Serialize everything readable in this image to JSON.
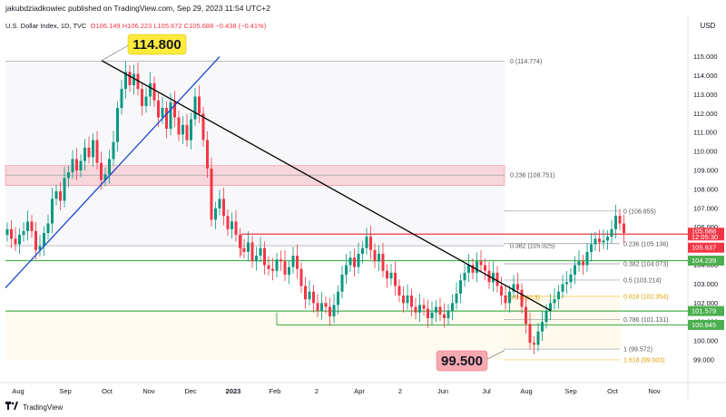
{
  "header": {
    "publisher": "jakubdziadkowiec published on TradingView.com, Sep 29, 2023 11:54 UTC+2",
    "symbol": "U.S. Dollar Index, 1D, TVC",
    "open": "O106.149",
    "high": "H106.223",
    "low": "L105.672",
    "close": "C105.688",
    "change": "−0.438 (−0.41%)",
    "currency": "USD"
  },
  "footer": {
    "brand": "TradingView"
  },
  "colors": {
    "up": "#089981",
    "down": "#f23645",
    "green_level": "#4caf50",
    "red_level": "#f23645",
    "trend_black": "#000000",
    "trend_blue": "#1848cc",
    "zone_pink": "#f7c5cc"
  },
  "chart_data": {
    "type": "candlestick",
    "yaxis": {
      "min": 98.5,
      "max": 116,
      "ticks": [
        99,
        100,
        101,
        102,
        103,
        104,
        105,
        106,
        107,
        108,
        109,
        110,
        111,
        112,
        113,
        114,
        115
      ]
    },
    "xaxis": {
      "labels": [
        "Aug",
        "Sep",
        "Oct",
        "Nov",
        "Dec",
        "2023",
        "Feb",
        "2",
        "Apr",
        "2",
        "Jun",
        "Jul",
        "Aug",
        "Sep",
        "Oct",
        "Nov"
      ]
    },
    "last_price": {
      "value": "105.688",
      "countdown": "12:05:30"
    },
    "price_tags": [
      {
        "value": "105.637",
        "color": "#f23645"
      },
      {
        "value": "104.239",
        "color": "#4caf50"
      },
      {
        "value": "101.579",
        "color": "#4caf50"
      },
      {
        "value": "100.845",
        "color": "#4caf50"
      }
    ],
    "fib_upper": [
      {
        "label": "0 (114.774)",
        "price": 114.774
      },
      {
        "label": "0.236 (108.751)",
        "price": 108.751
      },
      {
        "label": "0.382 (105.025)",
        "price": 105.025
      }
    ],
    "fib_lower": [
      {
        "label": "0 (106.855)",
        "price": 106.855
      },
      {
        "label": "0.236 (105.136)",
        "price": 105.136
      },
      {
        "label": "0.382 (104.073)",
        "price": 104.073
      },
      {
        "label": "0.5 (103.214)",
        "price": 103.214
      },
      {
        "label": "0.618 (102.354)",
        "price": 102.354
      },
      {
        "label": "0.786 (101.131)",
        "price": 101.131
      },
      {
        "label": "1 (99.572)",
        "price": 99.572
      },
      {
        "label": "1.618 (99.003)",
        "price": 99.003
      }
    ],
    "fib_overlap_label": "0.5 (102.3)",
    "callouts": [
      {
        "label": "114.800",
        "price": 114.8
      },
      {
        "label": "99.500",
        "price": 99.5
      }
    ],
    "levels": [
      {
        "price": 105.637,
        "color": "#f23645"
      },
      {
        "price": 104.239,
        "color": "#4caf50"
      },
      {
        "price": 101.579,
        "color": "#4caf50"
      },
      {
        "price": 100.845,
        "color": "#4caf50"
      }
    ],
    "zone": {
      "from": 108.2,
      "to": 109.25
    },
    "trendlines": [
      {
        "name": "descending",
        "from": [
          "Oct",
          114.8
        ],
        "to": [
          "Aug",
          101.6
        ]
      },
      {
        "name": "ascending",
        "from": [
          "Aug",
          102.8
        ],
        "to": [
          "Nov",
          115
        ]
      }
    ],
    "closes": [
      105.9,
      105.4,
      105.1,
      105.6,
      105.8,
      106.3,
      105.8,
      104.8,
      105.0,
      105.7,
      106.2,
      107.5,
      107.9,
      107.4,
      108.6,
      108.9,
      109.6,
      109.0,
      109.5,
      110.2,
      109.7,
      110.6,
      109.4,
      108.5,
      108.8,
      109.6,
      110.5,
      112.3,
      113.3,
      114.2,
      113.5,
      114.1,
      113.3,
      112.4,
      112.9,
      113.6,
      112.7,
      111.8,
      112.3,
      111.2,
      112.6,
      111.8,
      110.9,
      111.4,
      110.6,
      111.7,
      112.9,
      112.0,
      110.6,
      109.1,
      106.4,
      107.0,
      107.5,
      106.6,
      105.9,
      106.3,
      105.6,
      104.9,
      104.7,
      105.2,
      104.2,
      104.5,
      104.9,
      104.0,
      103.8,
      103.7,
      104.3,
      104.2,
      103.5,
      103.9,
      104.5,
      103.8,
      102.9,
      102.2,
      102.6,
      102.0,
      101.6,
      102.0,
      101.8,
      101.3,
      101.9,
      102.6,
      103.5,
      104.0,
      104.4,
      103.9,
      104.6,
      104.9,
      105.5,
      104.8,
      104.2,
      104.6,
      103.7,
      103.3,
      103.6,
      102.9,
      102.4,
      102.0,
      102.4,
      101.8,
      101.5,
      101.9,
      101.7,
      101.2,
      101.5,
      101.8,
      101.4,
      101.2,
      101.6,
      102.0,
      102.5,
      103.2,
      103.6,
      104.0,
      103.6,
      104.2,
      104.0,
      103.7,
      103.1,
      103.6,
      102.9,
      102.4,
      102.0,
      102.6,
      103.0,
      102.7,
      101.8,
      100.9,
      99.9,
      99.8,
      100.5,
      101.0,
      101.6,
      102.0,
      102.2,
      102.6,
      103.0,
      103.1,
      103.5,
      104.0,
      104.2,
      104.0,
      104.7,
      105.1,
      105.4,
      105.2,
      105.3,
      105.5,
      105.9,
      106.6,
      106.2,
      105.7
    ]
  }
}
